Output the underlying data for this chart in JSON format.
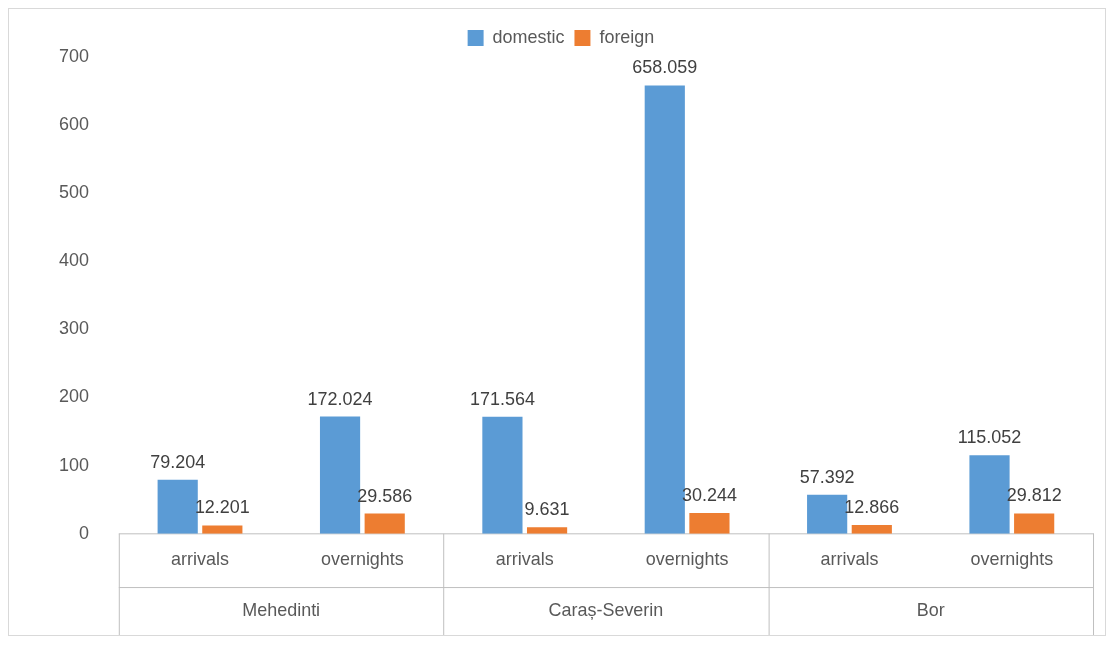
{
  "chart_data": {
    "type": "bar",
    "categories": [
      "arrivals",
      "overnights",
      "arrivals",
      "overnights",
      "arrivals",
      "overnights"
    ],
    "series": [
      {
        "name": "domestic",
        "color": "#5b9bd5",
        "values": [
          79.204,
          172.024,
          171.564,
          658.059,
          57.392,
          115.052
        ]
      },
      {
        "name": "foreign",
        "color": "#ed7d31",
        "values": [
          12.201,
          29.586,
          9.631,
          30.244,
          12.866,
          29.812
        ]
      }
    ],
    "annotations": [
      "Mehedinti",
      "Caraș-Severin",
      "Bor"
    ],
    "ylim": [
      0,
      700
    ],
    "yticks": [
      0,
      100,
      200,
      300,
      400,
      500,
      600,
      700
    ],
    "grid": false,
    "legend": "top",
    "data_labels": true
  }
}
